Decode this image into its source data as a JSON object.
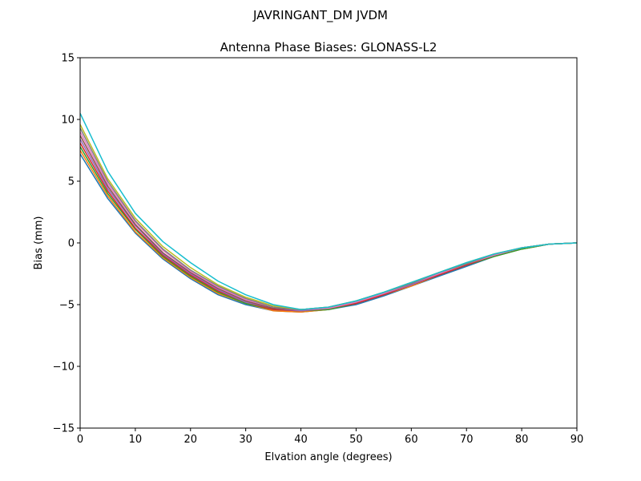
{
  "figure": {
    "suptitle": "JAVRINGANT_DM   JVDM"
  },
  "chart_data": {
    "type": "line",
    "title": "Antenna Phase Biases: GLONASS-L2",
    "xlabel": "Elvation angle (degrees)",
    "ylabel": "Bias (mm)",
    "xlim": [
      0,
      90
    ],
    "ylim": [
      -15,
      15
    ],
    "xticks": [
      0,
      10,
      20,
      30,
      40,
      50,
      60,
      70,
      80,
      90
    ],
    "yticks": [
      -15,
      -10,
      -5,
      0,
      5,
      10,
      15
    ],
    "ytick_labels": [
      "−15",
      "−10",
      "−5",
      "0",
      "5",
      "10",
      "15"
    ],
    "xtick_labels": [
      "0",
      "10",
      "20",
      "30",
      "40",
      "50",
      "60",
      "70",
      "80",
      "90"
    ],
    "grid": false,
    "legend": "none",
    "x": [
      0,
      5,
      10,
      15,
      20,
      25,
      30,
      35,
      40,
      45,
      50,
      55,
      60,
      65,
      70,
      75,
      80,
      85,
      90
    ],
    "series": [
      {
        "color": "#1f77b4",
        "values": [
          7.2,
          3.6,
          0.8,
          -1.3,
          -2.9,
          -4.2,
          -5.0,
          -5.5,
          -5.6,
          -5.4,
          -5.0,
          -4.3,
          -3.5,
          -2.7,
          -1.9,
          -1.1,
          -0.5,
          -0.1,
          0.0
        ]
      },
      {
        "color": "#ff7f0e",
        "values": [
          7.5,
          3.8,
          0.9,
          -1.2,
          -2.8,
          -4.1,
          -4.9,
          -5.5,
          -5.6,
          -5.4,
          -4.9,
          -4.2,
          -3.5,
          -2.6,
          -1.8,
          -1.1,
          -0.5,
          -0.1,
          0.0
        ]
      },
      {
        "color": "#2ca02c",
        "values": [
          7.8,
          4.0,
          1.1,
          -1.1,
          -2.7,
          -4.0,
          -4.9,
          -5.4,
          -5.5,
          -5.4,
          -4.9,
          -4.2,
          -3.4,
          -2.6,
          -1.8,
          -1.1,
          -0.5,
          -0.1,
          0.0
        ]
      },
      {
        "color": "#d62728",
        "values": [
          8.1,
          4.2,
          1.2,
          -1.0,
          -2.6,
          -3.9,
          -4.8,
          -5.4,
          -5.5,
          -5.3,
          -4.9,
          -4.2,
          -3.4,
          -2.6,
          -1.8,
          -1.0,
          -0.4,
          -0.1,
          0.0
        ]
      },
      {
        "color": "#9467bd",
        "values": [
          8.4,
          4.4,
          1.4,
          -0.9,
          -2.5,
          -3.8,
          -4.8,
          -5.3,
          -5.5,
          -5.3,
          -4.8,
          -4.1,
          -3.4,
          -2.5,
          -1.7,
          -1.0,
          -0.4,
          -0.1,
          0.0
        ]
      },
      {
        "color": "#8c564b",
        "values": [
          8.7,
          4.6,
          1.5,
          -0.8,
          -2.4,
          -3.7,
          -4.7,
          -5.3,
          -5.4,
          -5.3,
          -4.8,
          -4.1,
          -3.3,
          -2.5,
          -1.7,
          -1.0,
          -0.4,
          -0.1,
          0.0
        ]
      },
      {
        "color": "#e377c2",
        "values": [
          9.0,
          4.8,
          1.7,
          -0.6,
          -2.3,
          -3.6,
          -4.6,
          -5.2,
          -5.4,
          -5.3,
          -4.8,
          -4.1,
          -3.3,
          -2.5,
          -1.7,
          -1.0,
          -0.4,
          -0.1,
          0.0
        ]
      },
      {
        "color": "#7f7f7f",
        "values": [
          9.3,
          5.0,
          1.8,
          -0.5,
          -2.2,
          -3.5,
          -4.5,
          -5.2,
          -5.4,
          -5.2,
          -4.7,
          -4.0,
          -3.3,
          -2.4,
          -1.7,
          -0.9,
          -0.4,
          -0.1,
          0.0
        ]
      },
      {
        "color": "#bcbd22",
        "values": [
          9.6,
          5.2,
          2.0,
          -0.3,
          -2.0,
          -3.4,
          -4.4,
          -5.1,
          -5.4,
          -5.2,
          -4.7,
          -4.0,
          -3.2,
          -2.4,
          -1.6,
          -0.9,
          -0.4,
          -0.1,
          0.0
        ]
      },
      {
        "color": "#17becf",
        "values": [
          10.5,
          5.8,
          2.4,
          0.1,
          -1.6,
          -3.1,
          -4.2,
          -5.0,
          -5.4,
          -5.2,
          -4.7,
          -4.0,
          -3.2,
          -2.4,
          -1.6,
          -0.9,
          -0.4,
          -0.1,
          0.0
        ]
      }
    ]
  },
  "colors": {
    "background": "#ffffff",
    "axes": "#000000"
  }
}
